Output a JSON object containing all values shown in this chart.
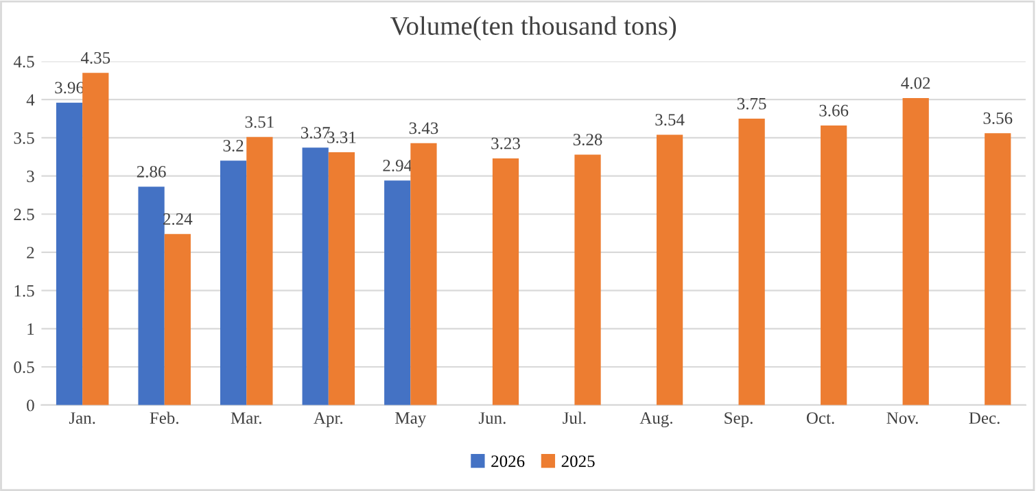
{
  "chart_data": {
    "type": "bar",
    "title": "Volume(ten thousand tons)",
    "categories": [
      "Jan.",
      "Feb.",
      "Mar.",
      "Apr.",
      "May",
      "Jun.",
      "Jul.",
      "Aug.",
      "Sep.",
      "Oct.",
      "Nov.",
      "Dec."
    ],
    "series": [
      {
        "name": "2026",
        "color": "#4472c4",
        "values": [
          3.96,
          2.86,
          3.2,
          3.37,
          2.94,
          null,
          null,
          null,
          null,
          null,
          null,
          null
        ]
      },
      {
        "name": "2025",
        "color": "#ed7d31",
        "values": [
          4.35,
          2.24,
          3.51,
          3.31,
          3.43,
          3.23,
          3.28,
          3.54,
          3.75,
          3.66,
          4.02,
          3.56
        ]
      }
    ],
    "ylim": [
      0,
      4.5
    ],
    "yticks": [
      0,
      0.5,
      1,
      1.5,
      2,
      2.5,
      3,
      3.5,
      4,
      4.5
    ],
    "grid": "y",
    "legend": "bottom",
    "data_labels": true
  }
}
